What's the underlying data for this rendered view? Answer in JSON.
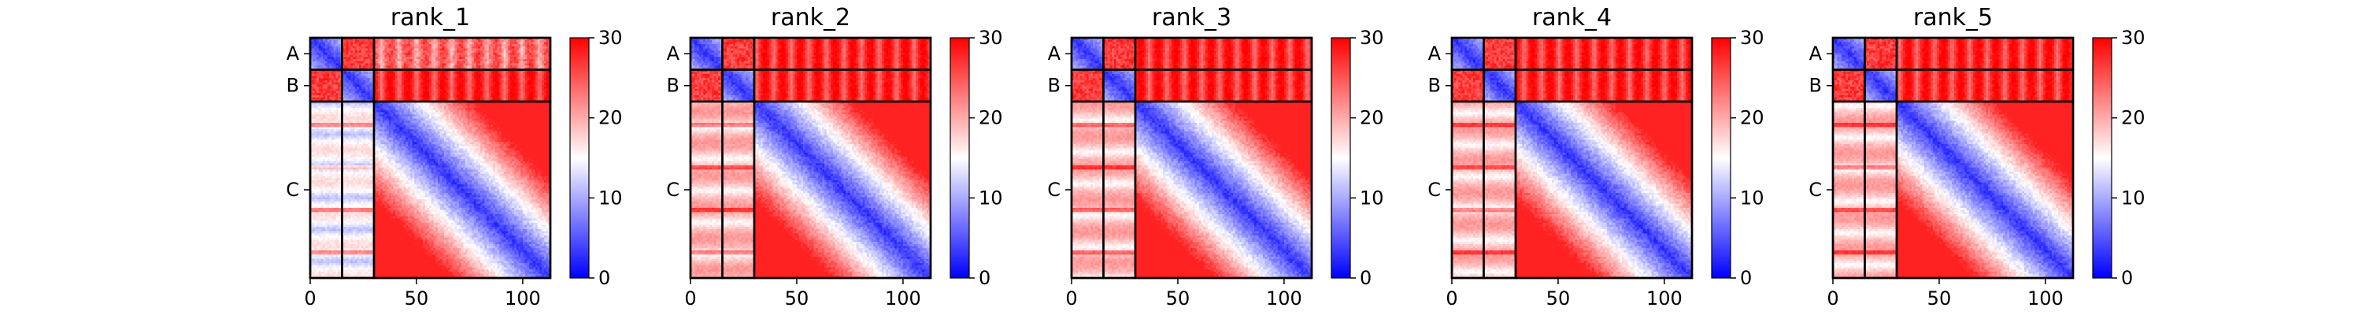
{
  "chart_data": {
    "type": "heatmap",
    "colormap": [
      "#0000ff",
      "#ffffff",
      "#ff0000"
    ],
    "color_range": [
      0,
      30
    ],
    "colorbar_ticks": [
      0,
      10,
      20,
      30
    ],
    "x_ticks": [
      0,
      50,
      100
    ],
    "x_range": [
      0,
      113
    ],
    "chains": [
      {
        "label": "A",
        "length": 15
      },
      {
        "label": "B",
        "length": 15
      },
      {
        "label": "C",
        "length": 83
      }
    ],
    "panels": [
      {
        "title": "rank_1"
      },
      {
        "title": "rank_2"
      },
      {
        "title": "rank_3"
      },
      {
        "title": "rank_4"
      },
      {
        "title": "rank_5"
      }
    ]
  }
}
